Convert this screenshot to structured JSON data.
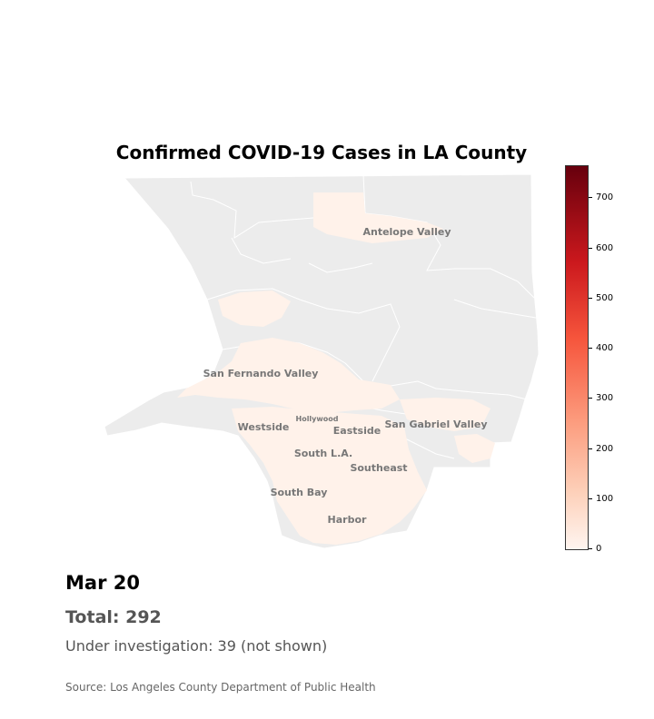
{
  "title": "Confirmed COVID-19 Cases in LA County",
  "date": "Mar 20",
  "total": "Total: 292",
  "under_investigation": "Under investigation: 39 (not shown)",
  "source": "Source: Los Angeles County Department of Public Health",
  "colors": {
    "land": "#ececec",
    "border": "#ffffff",
    "label": "#777777",
    "scale_low": "#fff5f0",
    "scale_high": "#67000d"
  },
  "regions": [
    "Antelope Valley",
    "San Fernando Valley",
    "Hollywood",
    "Westside",
    "Eastside",
    "San Gabriel Valley",
    "South L.A.",
    "Southeast",
    "South Bay",
    "Harbor"
  ],
  "colorbar": {
    "min": 0,
    "max": 765,
    "ticks": [
      "0",
      "100",
      "200",
      "300",
      "400",
      "500",
      "600",
      "700"
    ]
  }
}
